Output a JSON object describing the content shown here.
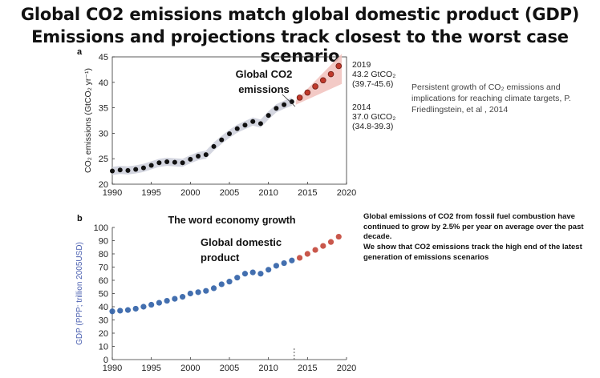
{
  "header": {
    "title": "Global CO2 emissions match global domestic product (GDP)",
    "subtitle": "Emissions and projections track closest to the worst case scenario"
  },
  "citation": "Persistent growth of CO₂ emissions and implications for reaching climate targets, P. Friedlingstein, et al , 2014",
  "notes": {
    "line1": "Global emissions of CO2 from fossil fuel combustion have continued to grow by 2.5% per year on average over the past decade.",
    "line2": "We show that CO2 emissions track the high end of the latest generation of emissions scenarios"
  },
  "chart_data": [
    {
      "type": "scatter",
      "panel": "a",
      "ylabel": "CO₂ emissions (GtCO₂ yr⁻¹)",
      "annotation": "Global CO2 emissions",
      "xlim": [
        1990,
        2020
      ],
      "ylim": [
        20,
        45
      ],
      "xticks": [
        1990,
        1995,
        2000,
        2005,
        2010,
        2015,
        2020
      ],
      "yticks": [
        20,
        25,
        30,
        35,
        40,
        45
      ],
      "series": [
        {
          "role": "observed",
          "color": "#111111",
          "x": [
            1990,
            1991,
            1992,
            1993,
            1994,
            1995,
            1996,
            1997,
            1998,
            1999,
            2000,
            2001,
            2002,
            2003,
            2004,
            2005,
            2006,
            2007,
            2008,
            2009,
            2010,
            2011,
            2012,
            2013
          ],
          "y": [
            22.6,
            22.8,
            22.7,
            22.9,
            23.2,
            23.7,
            24.2,
            24.4,
            24.3,
            24.2,
            24.9,
            25.5,
            25.8,
            27.4,
            28.7,
            29.9,
            30.9,
            31.6,
            32.3,
            31.9,
            33.5,
            34.9,
            35.6,
            36.2
          ]
        },
        {
          "role": "projection",
          "color": "#c0392b",
          "x": [
            2014,
            2015,
            2016,
            2017,
            2018,
            2019
          ],
          "y": [
            37.0,
            38.0,
            39.2,
            40.4,
            41.6,
            43.2
          ]
        }
      ],
      "labels": [
        {
          "year": "2019",
          "value": "43.2 GtCO₂",
          "range": "(39.7-45.6)"
        },
        {
          "year": "2014",
          "value": "37.0 GtCO₂",
          "range": "(34.8-39.3)"
        }
      ],
      "colors": {
        "band_observed": "#c9ccd8",
        "band_projection": "#f2c4c0"
      }
    },
    {
      "type": "scatter",
      "panel": "b",
      "title": "The word economy growth",
      "ylabel": "GDP (PPP; trillion 2005USD)",
      "annotation": "Global domestic product",
      "xlim": [
        1990,
        2020
      ],
      "ylim": [
        0,
        100
      ],
      "xticks": [
        1990,
        1995,
        2000,
        2005,
        2010,
        2015,
        2020
      ],
      "yticks": [
        0,
        10,
        20,
        30,
        40,
        50,
        60,
        70,
        80,
        90,
        100
      ],
      "series": [
        {
          "role": "observed",
          "color": "#2f5fa6",
          "x": [
            1990,
            1991,
            1992,
            1993,
            1994,
            1995,
            1996,
            1997,
            1998,
            1999,
            2000,
            2001,
            2002,
            2003,
            2004,
            2005,
            2006,
            2007,
            2008,
            2009,
            2010,
            2011,
            2012,
            2013
          ],
          "y": [
            36.5,
            37,
            37.5,
            38.5,
            40,
            41.5,
            43,
            44.5,
            46,
            47.5,
            50,
            51,
            52,
            54,
            57,
            59,
            62,
            65,
            66,
            65,
            68,
            71,
            73,
            75
          ]
        },
        {
          "role": "projection",
          "color": "#c0392b",
          "x": [
            2014,
            2015,
            2016,
            2017,
            2018,
            2019
          ],
          "y": [
            77,
            80,
            83,
            86,
            89,
            93
          ]
        }
      ]
    }
  ]
}
